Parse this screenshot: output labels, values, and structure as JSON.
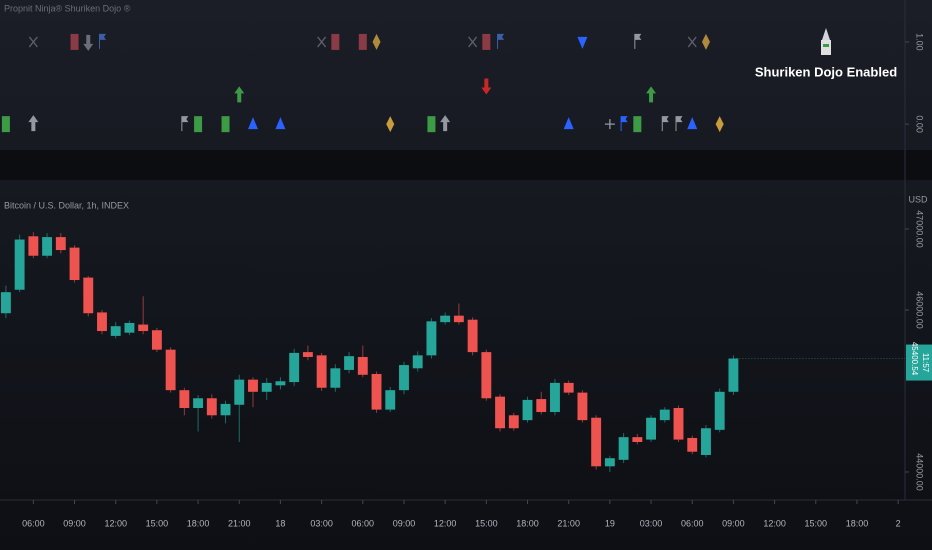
{
  "chart_data": [
    {
      "type": "markers",
      "title": "Propnit Ninja® Shuriken Dojo ®",
      "annotation": "Shuriken Dojo Enabled",
      "xlim": [
        -0.43,
        65.5
      ],
      "ylim": [
        -0.29,
        1.51
      ],
      "yticks": [
        {
          "value": 0,
          "label": "0.00"
        },
        {
          "value": 1,
          "label": "1.00"
        }
      ],
      "markers": [
        {
          "x": 2,
          "y": 1,
          "shape": "xcross",
          "color": "#5d606b"
        },
        {
          "x": 5,
          "y": 1,
          "shape": "square",
          "color": "#8a3b45"
        },
        {
          "x": 6,
          "y": 1,
          "shape": "arrowdown",
          "color": "#6b6e78"
        },
        {
          "x": 7,
          "y": 1,
          "shape": "flag",
          "color": "#3a5fa8"
        },
        {
          "x": 23,
          "y": 1,
          "shape": "xcross",
          "color": "#5d606b"
        },
        {
          "x": 24,
          "y": 1,
          "shape": "square",
          "color": "#8a3b45"
        },
        {
          "x": 26,
          "y": 1,
          "shape": "square",
          "color": "#8a3b45"
        },
        {
          "x": 27,
          "y": 1,
          "shape": "diamond",
          "color": "#b08a3c"
        },
        {
          "x": 34,
          "y": 1,
          "shape": "xcross",
          "color": "#5d606b"
        },
        {
          "x": 35,
          "y": 1,
          "shape": "square",
          "color": "#8a3b45"
        },
        {
          "x": 36,
          "y": 1,
          "shape": "flag",
          "color": "#3a5fa8"
        },
        {
          "x": 42,
          "y": 1,
          "shape": "triangledown",
          "color": "#2962ff"
        },
        {
          "x": 46,
          "y": 1,
          "shape": "flag",
          "color": "#9598a1"
        },
        {
          "x": 50,
          "y": 1,
          "shape": "xcross",
          "color": "#5d606b"
        },
        {
          "x": 51,
          "y": 1,
          "shape": "diamond",
          "color": "#b08a3c"
        },
        {
          "x": 17,
          "y": 0.35,
          "shape": "arrowup",
          "color": "#3d9b46"
        },
        {
          "x": 35,
          "y": 0.47,
          "shape": "arrowdown",
          "color": "#c62828"
        },
        {
          "x": 47,
          "y": 0.35,
          "shape": "arrowup",
          "color": "#3d9b46"
        },
        {
          "x": 0,
          "y": 0,
          "shape": "square",
          "color": "#3d9b46"
        },
        {
          "x": 2,
          "y": 0,
          "shape": "arrowup",
          "color": "#9598a1"
        },
        {
          "x": 13,
          "y": 0,
          "shape": "flag",
          "color": "#9598a1"
        },
        {
          "x": 14,
          "y": 0,
          "shape": "square",
          "color": "#3d9b46"
        },
        {
          "x": 16,
          "y": 0,
          "shape": "square",
          "color": "#3d9b46"
        },
        {
          "x": 18,
          "y": 0,
          "shape": "triangleup",
          "color": "#2962ff"
        },
        {
          "x": 20,
          "y": 0,
          "shape": "triangleup",
          "color": "#2962ff"
        },
        {
          "x": 28,
          "y": 0,
          "shape": "diamond",
          "color": "#c89b3c"
        },
        {
          "x": 31,
          "y": 0,
          "shape": "square",
          "color": "#3d9b46"
        },
        {
          "x": 32,
          "y": 0,
          "shape": "arrowup",
          "color": "#9598a1"
        },
        {
          "x": 41,
          "y": 0,
          "shape": "triangleup",
          "color": "#2962ff"
        },
        {
          "x": 44,
          "y": 0,
          "shape": "cross",
          "color": "#9598a1"
        },
        {
          "x": 45,
          "y": 0,
          "shape": "flag",
          "color": "#2962ff"
        },
        {
          "x": 46,
          "y": 0,
          "shape": "square",
          "color": "#3d9b46"
        },
        {
          "x": 48,
          "y": 0,
          "shape": "flag",
          "color": "#9598a1"
        },
        {
          "x": 49,
          "y": 0,
          "shape": "flag",
          "color": "#9598a1"
        },
        {
          "x": 50,
          "y": 0,
          "shape": "triangleup",
          "color": "#2962ff"
        },
        {
          "x": 52,
          "y": 0,
          "shape": "diamond",
          "color": "#c89b3c"
        }
      ]
    },
    {
      "type": "candlestick",
      "title": "Bitcoin / U.S. Dollar, 1h, INDEX",
      "y_label": "USD",
      "up_color": "#26a69a",
      "down_color": "#ef5350",
      "last_price": 45400.54,
      "countdown": "11:57",
      "xlim": [
        -0.43,
        65.5
      ],
      "ylim": [
        43654,
        47568
      ],
      "yticks": [
        {
          "value": 44000,
          "label": "44000.00"
        },
        {
          "value": 46000,
          "label": "46000.00"
        },
        {
          "value": 47000,
          "label": "47000.00"
        }
      ],
      "xticks": [
        {
          "value": 2,
          "label": "06:00"
        },
        {
          "value": 5,
          "label": "09:00"
        },
        {
          "value": 8,
          "label": "12:00"
        },
        {
          "value": 11,
          "label": "15:00"
        },
        {
          "value": 14,
          "label": "18:00"
        },
        {
          "value": 17,
          "label": "21:00"
        },
        {
          "value": 20,
          "label": "18"
        },
        {
          "value": 23,
          "label": "03:00"
        },
        {
          "value": 26,
          "label": "06:00"
        },
        {
          "value": 29,
          "label": "09:00"
        },
        {
          "value": 32,
          "label": "12:00"
        },
        {
          "value": 35,
          "label": "15:00"
        },
        {
          "value": 38,
          "label": "18:00"
        },
        {
          "value": 41,
          "label": "21:00"
        },
        {
          "value": 44,
          "label": "19"
        },
        {
          "value": 47,
          "label": "03:00"
        },
        {
          "value": 50,
          "label": "06:00"
        },
        {
          "value": 53,
          "label": "09:00"
        },
        {
          "value": 56,
          "label": "12:00"
        },
        {
          "value": 59,
          "label": "15:00"
        },
        {
          "value": 62,
          "label": "18:00"
        },
        {
          "value": 65,
          "label": "2"
        }
      ],
      "open": [
        45960,
        46250,
        46910,
        46670,
        46900,
        46770,
        46400,
        45970,
        45680,
        45720,
        45820,
        45750,
        45510,
        45010,
        44790,
        44910,
        44700,
        44830,
        45140,
        44990,
        45070,
        45110,
        45480,
        45440,
        45040,
        45260,
        45420,
        45210,
        44770,
        45010,
        45280,
        45440,
        45850,
        45930,
        45880,
        45480,
        44930,
        44700,
        44640,
        44900,
        44740,
        45100,
        44980,
        44670,
        44070,
        44150,
        44430,
        44400,
        44640,
        44790,
        44420,
        44210,
        44520,
        44990
      ],
      "high": [
        46300,
        46930,
        46960,
        46950,
        46950,
        46800,
        46420,
        46000,
        45850,
        45870,
        46170,
        45780,
        45540,
        45040,
        44950,
        44960,
        44880,
        45200,
        45170,
        45160,
        45170,
        45520,
        45560,
        45470,
        45330,
        45480,
        45560,
        45240,
        45050,
        45360,
        45490,
        45900,
        45970,
        46080,
        45910,
        45510,
        44960,
        44730,
        44930,
        44990,
        45150,
        45130,
        45010,
        44700,
        44200,
        44480,
        44470,
        44700,
        44800,
        44820,
        44450,
        44580,
        45030,
        45440
      ],
      "low": [
        45900,
        46220,
        46640,
        46640,
        46700,
        46340,
        45920,
        45700,
        45650,
        45690,
        45700,
        45480,
        44980,
        44700,
        44500,
        44660,
        44600,
        44370,
        44800,
        44890,
        45020,
        45060,
        45380,
        45000,
        44990,
        45220,
        45170,
        44730,
        44740,
        44960,
        45240,
        45400,
        45820,
        45820,
        45440,
        44880,
        44500,
        44510,
        44610,
        44710,
        44700,
        44950,
        44610,
        44030,
        44000,
        44110,
        44340,
        44370,
        44610,
        44370,
        44220,
        44180,
        44490,
        44950
      ],
      "close": [
        46220,
        46870,
        46670,
        46900,
        46740,
        46370,
        45960,
        45740,
        45800,
        45840,
        45740,
        45510,
        45010,
        44790,
        44910,
        44700,
        44840,
        45140,
        44990,
        45100,
        45120,
        45470,
        45420,
        45040,
        45280,
        45430,
        45200,
        44770,
        45010,
        45320,
        45440,
        45860,
        45930,
        45850,
        45480,
        44910,
        44540,
        44540,
        44890,
        44740,
        45100,
        44980,
        44640,
        44070,
        44170,
        44430,
        44370,
        44670,
        44770,
        44400,
        44250,
        44540,
        44990,
        45400.54
      ]
    }
  ]
}
